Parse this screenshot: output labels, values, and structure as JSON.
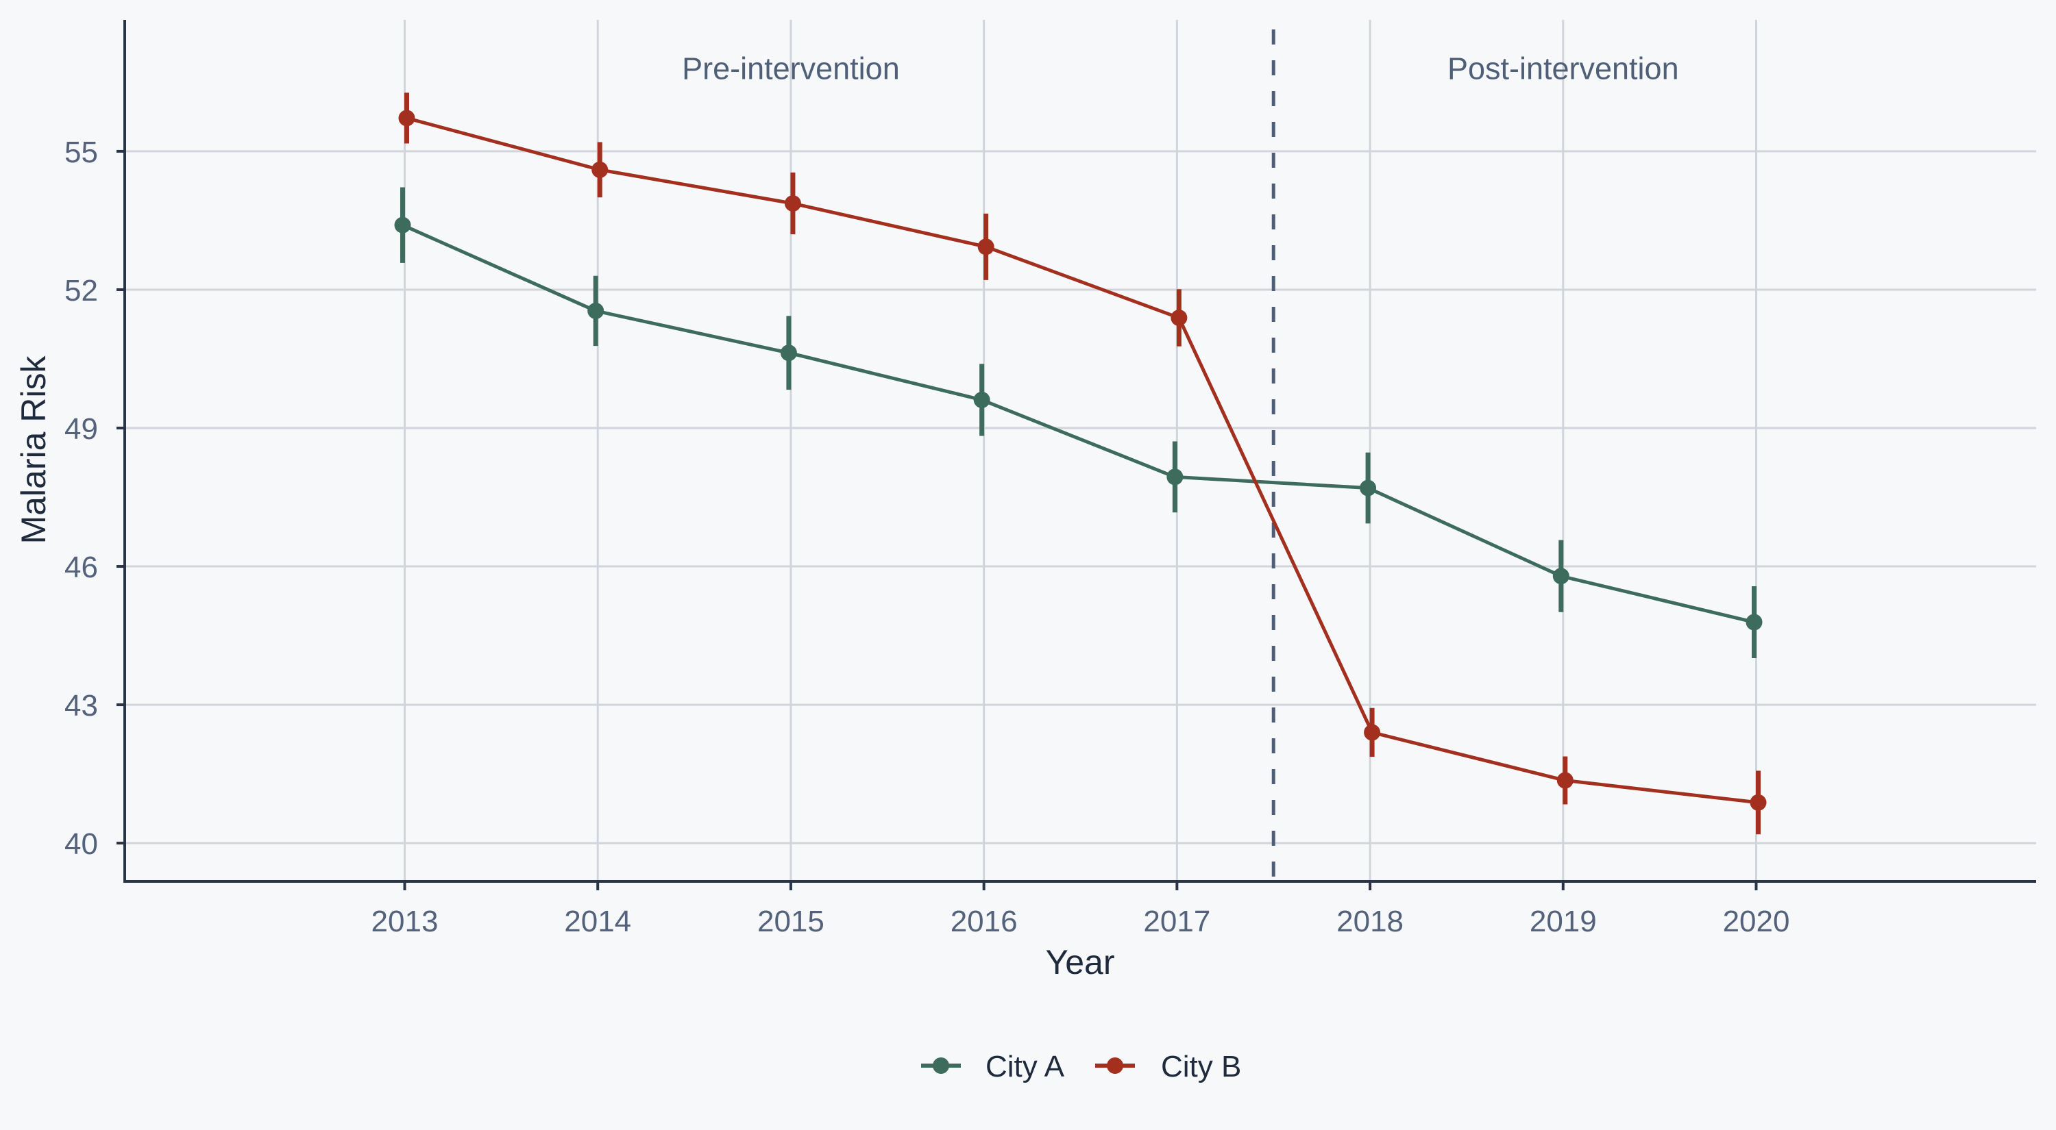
{
  "chart_data": {
    "type": "line",
    "title": "",
    "xlabel": "Year",
    "ylabel": "Malaria Risk",
    "x": [
      2013,
      2014,
      2015,
      2016,
      2017,
      2018,
      2019,
      2020
    ],
    "x_tick_labels": [
      "2013",
      "2014",
      "2015",
      "2016",
      "2017",
      "2018",
      "2019",
      "2020"
    ],
    "y_ticks": [
      40,
      43,
      46,
      49,
      52,
      55
    ],
    "y_tick_labels": [
      "40",
      "43",
      "46",
      "49",
      "52",
      "55"
    ],
    "xlim": [
      2011.55,
      2021.45
    ],
    "ylim": [
      39.17,
      57.85
    ],
    "grid": true,
    "legend_position": "bottom-center",
    "series": [
      {
        "name": "City A",
        "color": "#3d6b5c",
        "values": [
          53.4,
          51.54,
          50.63,
          49.61,
          47.94,
          47.7,
          45.79,
          44.79
        ],
        "error": [
          0.82,
          0.76,
          0.8,
          0.78,
          0.77,
          0.77,
          0.78,
          0.78
        ]
      },
      {
        "name": "City B",
        "color": "#a3301f",
        "values": [
          55.72,
          54.6,
          53.87,
          52.93,
          51.39,
          42.4,
          41.36,
          40.88
        ],
        "error": [
          0.55,
          0.6,
          0.67,
          0.72,
          0.62,
          0.53,
          0.52,
          0.69
        ]
      }
    ],
    "reference_line": {
      "x": 2017.5,
      "style": "dashed",
      "color": "#4f5d78"
    },
    "annotations": [
      {
        "text": "Pre-intervention",
        "x": 2015.0,
        "y": 56.8
      },
      {
        "text": "Post-intervention",
        "x": 2019.0,
        "y": 56.8
      }
    ]
  },
  "colors": {
    "background": "#f7f8fa",
    "grid": "#d1d5db",
    "axis": "#2a3447"
  }
}
